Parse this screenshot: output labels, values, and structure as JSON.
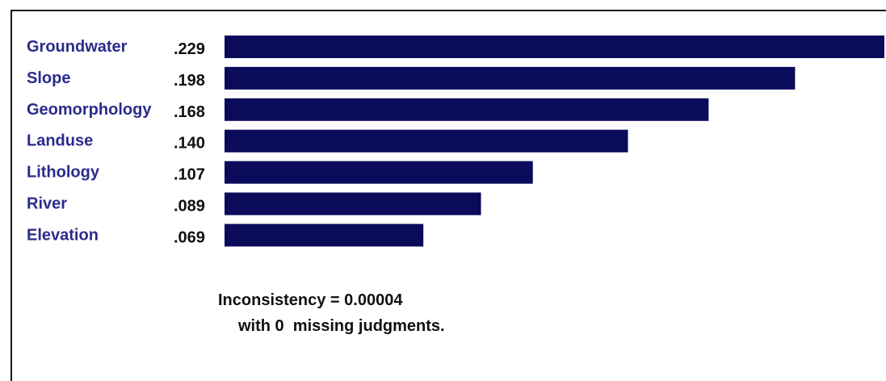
{
  "colors": {
    "bar": "#0b0b5c",
    "category_label": "#2b2b8c",
    "value_label": "#111111",
    "frame": "#1a1a1a"
  },
  "chart_data": {
    "type": "bar",
    "orientation": "horizontal",
    "categories": [
      "Groundwater",
      "Slope",
      "Geomorphology",
      "Landuse",
      "Lithology",
      "River",
      "Elevation"
    ],
    "values": [
      0.229,
      0.198,
      0.168,
      0.14,
      0.107,
      0.089,
      0.069
    ],
    "value_labels": [
      ".229",
      ".198",
      ".168",
      ".140",
      ".107",
      ".089",
      ".069"
    ],
    "xlim": [
      0,
      0.229
    ],
    "grid": false,
    "title": ""
  },
  "footer": {
    "inconsistency": "Inconsistency = 0.00004",
    "missing": "with 0  missing judgments."
  }
}
